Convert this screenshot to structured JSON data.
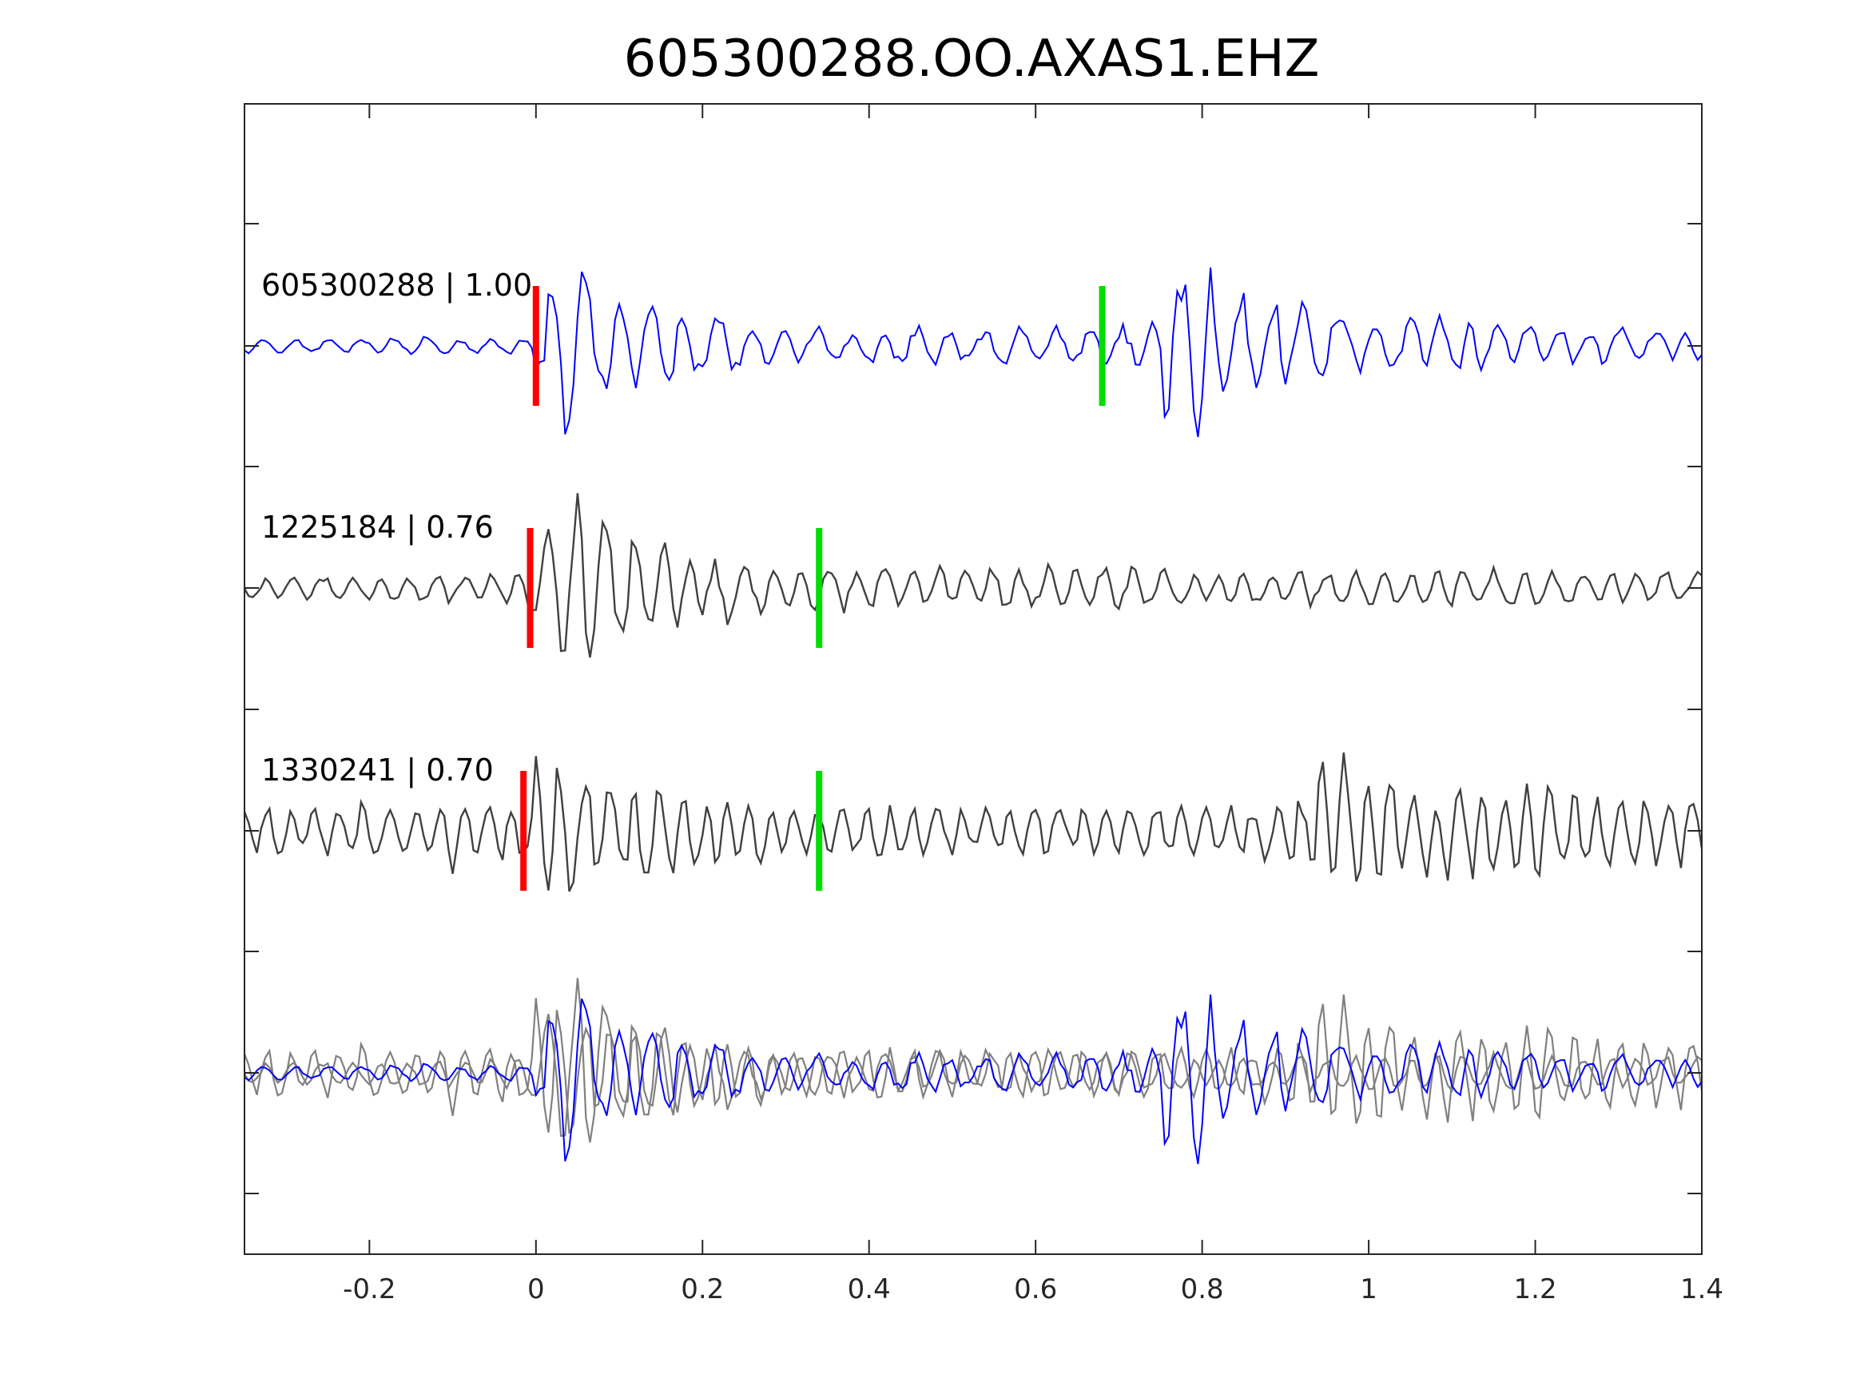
{
  "chart_data": {
    "type": "line",
    "title": "605300288.OO.AXAS1.EHZ",
    "xlabel": "",
    "ylabel": "",
    "xlim": [
      -0.35,
      1.4
    ],
    "xticks": [
      -0.2,
      0,
      0.2,
      0.4,
      0.6,
      0.8,
      1,
      1.2,
      1.4
    ],
    "xtick_labels": [
      "-0.2",
      "0",
      "0.2",
      "0.4",
      "0.6",
      "0.8",
      "1",
      "1.2",
      "1.4"
    ],
    "grid": false,
    "series": [
      {
        "name": "605300288",
        "label": "605300288 | 1.00",
        "correlation": 1.0,
        "color": "#0000ff",
        "p_pick": 0.0,
        "s_pick": 0.68
      },
      {
        "name": "1225184",
        "label": "1225184 | 0.76",
        "correlation": 0.76,
        "color": "#404040",
        "p_pick": -0.007,
        "s_pick": 0.34
      },
      {
        "name": "1330241",
        "label": "1330241 | 0.70",
        "correlation": 0.7,
        "color": "#404040",
        "p_pick": -0.015,
        "s_pick": 0.34
      }
    ],
    "overlay_panel": {
      "series": [
        "605300288",
        "1225184",
        "1330241"
      ],
      "colors": [
        "#0000ff",
        "#808080",
        "#808080"
      ]
    },
    "pick_colors": {
      "p": "#ff0000",
      "s": "#00dd00"
    }
  }
}
